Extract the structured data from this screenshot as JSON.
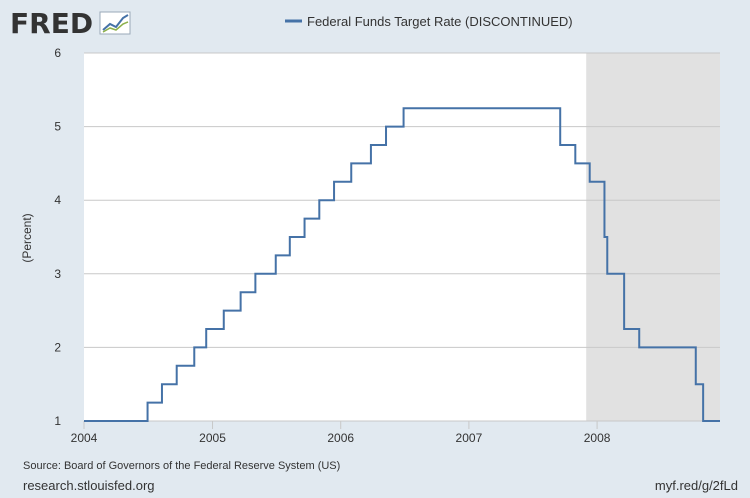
{
  "brand": {
    "logo_text": "FRED"
  },
  "footer": {
    "source": "Source: Board of Governors of the Federal Reserve System (US)",
    "site": "research.stlouisfed.org",
    "short_url": "myf.red/g/2fLd"
  },
  "colors": {
    "series": "#4572a7",
    "plot_bg": "#ffffff",
    "page_bg": "#e1e9f0",
    "recession": "#e1e1e1",
    "grid": "#c8c8c8",
    "logo": "#333333"
  },
  "chart_data": {
    "type": "line",
    "step": true,
    "title": "",
    "xlabel": "",
    "ylabel": "(Percent)",
    "xlim": [
      "2004-01-01",
      "2008-12-16"
    ],
    "ylim": [
      1,
      6
    ],
    "y_ticks": [
      1,
      2,
      3,
      4,
      5,
      6
    ],
    "x_ticks": [
      "2004",
      "2005",
      "2006",
      "2007",
      "2008"
    ],
    "grid": true,
    "legend": "top-center",
    "recession_shading": [
      {
        "start": "2007-12-01",
        "end": "2008-12-16"
      }
    ],
    "series": [
      {
        "name": "Federal Funds Target Rate (DISCONTINUED)",
        "color": "#4572a7",
        "points": [
          [
            "2004-01-01",
            1.0
          ],
          [
            "2004-06-30",
            1.25
          ],
          [
            "2004-08-10",
            1.5
          ],
          [
            "2004-09-21",
            1.75
          ],
          [
            "2004-11-10",
            2.0
          ],
          [
            "2004-12-14",
            2.25
          ],
          [
            "2005-02-02",
            2.5
          ],
          [
            "2005-03-22",
            2.75
          ],
          [
            "2005-05-03",
            3.0
          ],
          [
            "2005-06-30",
            3.25
          ],
          [
            "2005-08-09",
            3.5
          ],
          [
            "2005-09-20",
            3.75
          ],
          [
            "2005-11-01",
            4.0
          ],
          [
            "2005-12-13",
            4.25
          ],
          [
            "2006-01-31",
            4.5
          ],
          [
            "2006-03-28",
            4.75
          ],
          [
            "2006-05-10",
            5.0
          ],
          [
            "2006-06-29",
            5.25
          ],
          [
            "2007-09-18",
            4.75
          ],
          [
            "2007-10-31",
            4.5
          ],
          [
            "2007-12-11",
            4.25
          ],
          [
            "2008-01-22",
            3.5
          ],
          [
            "2008-01-30",
            3.0
          ],
          [
            "2008-03-18",
            2.25
          ],
          [
            "2008-04-30",
            2.0
          ],
          [
            "2008-10-08",
            1.5
          ],
          [
            "2008-10-29",
            1.0
          ],
          [
            "2008-12-16",
            1.0
          ]
        ]
      }
    ]
  }
}
